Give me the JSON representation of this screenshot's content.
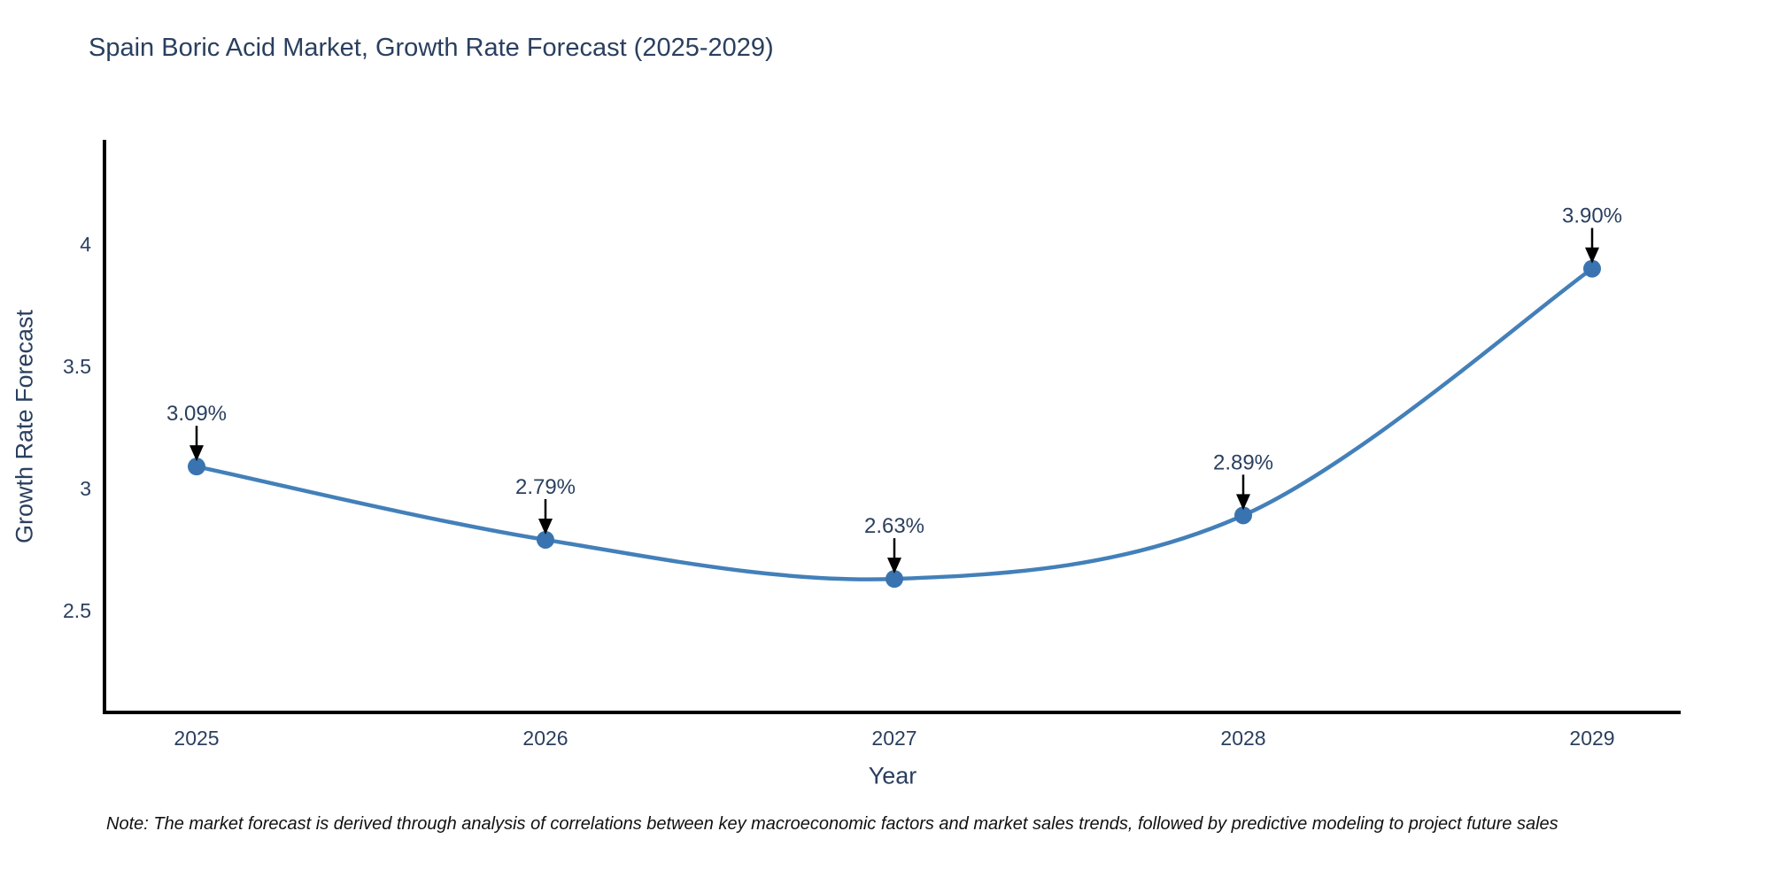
{
  "title": "Spain Boric Acid Market, Growth Rate Forecast (2025-2029)",
  "note": "Note: The market forecast is derived through analysis of correlations between key macroeconomic factors and market sales trends, followed by predictive modeling to project future sales",
  "chart_data": {
    "type": "line",
    "title": "Spain Boric Acid Market, Growth Rate Forecast (2025-2029)",
    "xlabel": "Year",
    "ylabel": "Growth Rate Forecast",
    "categories": [
      "2025",
      "2026",
      "2027",
      "2028",
      "2029"
    ],
    "series": [
      {
        "name": "Growth Rate Forecast",
        "values": [
          3.09,
          2.79,
          2.63,
          2.89,
          3.9
        ]
      }
    ],
    "point_labels": [
      "3.09%",
      "2.79%",
      "2.63%",
      "2.89%",
      "3.90%"
    ],
    "yticks": [
      2.5,
      3,
      3.5,
      4
    ],
    "ylim": [
      2.08,
      4.42
    ],
    "grid": false,
    "legend": "none",
    "line_shape": "spline",
    "annotation_style": "black-down-arrows",
    "colors": {
      "line": "#4380b9",
      "marker": "#3a74b0",
      "text": "#2a3f5f",
      "axis": "#000000",
      "arrow": "#000000",
      "note": "#111111"
    }
  }
}
